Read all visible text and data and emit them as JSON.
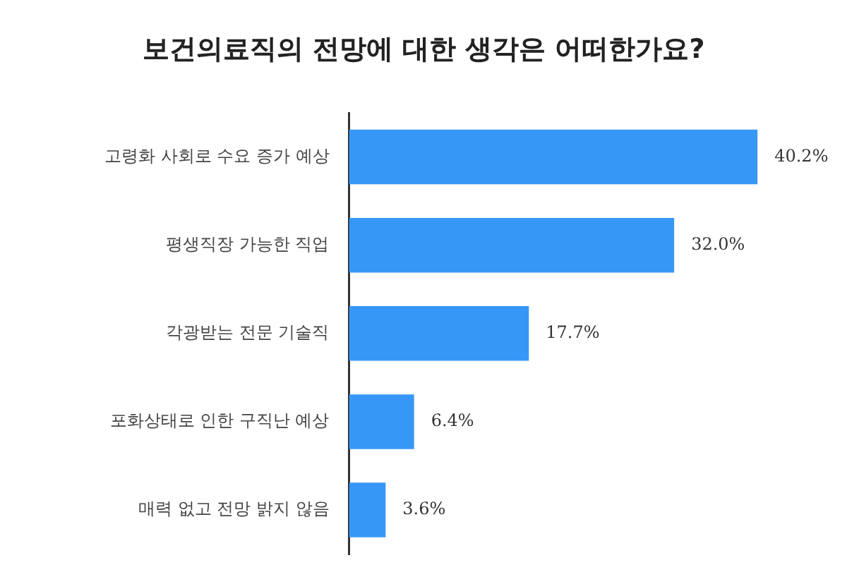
{
  "chart_data": {
    "type": "bar",
    "orientation": "horizontal",
    "title": "보건의료직의 전망에 대한 생각은 어떠한가요?",
    "categories": [
      "고령화 사회로 수요 증가 예상",
      "평생직장 가능한 직업",
      "각광받는 전문 기술직",
      "포화상태로 인한 구직난 예상",
      "매력 없고 전망 밝지 않음"
    ],
    "values": [
      40.2,
      32.0,
      17.7,
      6.4,
      3.6
    ],
    "value_labels": [
      "40.2%",
      "32.0%",
      "17.7%",
      "6.4%",
      "3.6%"
    ],
    "color": "#3797f7"
  }
}
